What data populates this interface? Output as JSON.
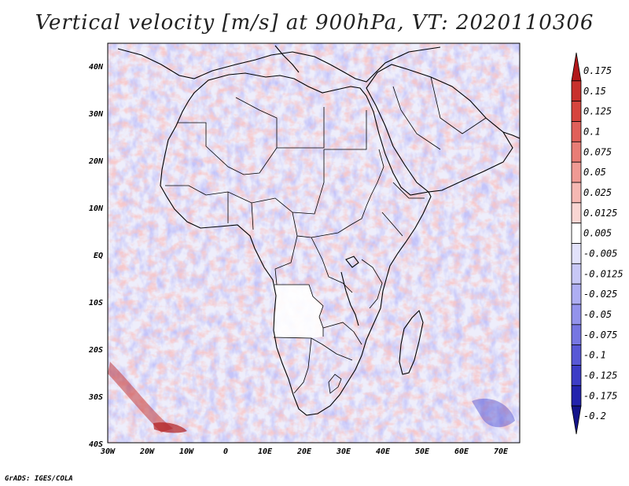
{
  "title": "Vertical velocity [m/s] at 900hPa, VT: 2020110306",
  "footer": "GrADS: IGES/COLA",
  "map": {
    "lon_range": [
      -30,
      75
    ],
    "lat_range": [
      -40,
      45
    ],
    "lat_labels": [
      "40N",
      "30N",
      "20N",
      "10N",
      "EQ",
      "10S",
      "20S",
      "30S",
      "40S"
    ],
    "lon_labels": [
      "30W",
      "20W",
      "10W",
      "0",
      "10E",
      "20E",
      "30E",
      "40E",
      "50E",
      "60E",
      "70E"
    ],
    "background_color": "#ffffff",
    "coastline_color": "#000000"
  },
  "colorbar": {
    "levels": [
      "0.175",
      "0.15",
      "0.125",
      "0.1",
      "0.075",
      "0.05",
      "0.025",
      "0.0125",
      "0.005",
      "-0.005",
      "-0.0125",
      "-0.025",
      "-0.05",
      "-0.075",
      "-0.1",
      "-0.125",
      "-0.175",
      "-0.2"
    ],
    "colors": [
      "#b2181b",
      "#c8302c",
      "#d6453e",
      "#e0605a",
      "#e87d76",
      "#ef9a94",
      "#f5b8b3",
      "#f9d6d3",
      "#ffffff",
      "#e2e2fb",
      "#c8c8f6",
      "#aeaef2",
      "#9393ec",
      "#7676e2",
      "#5858d6",
      "#3c3cc6",
      "#2323ad",
      "#14148a"
    ]
  }
}
